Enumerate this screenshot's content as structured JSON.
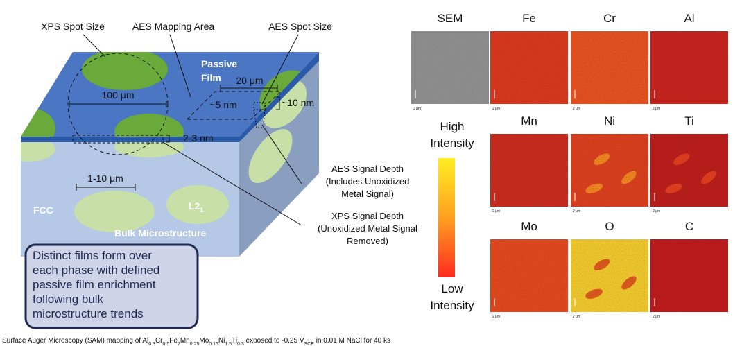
{
  "diagram": {
    "labels": {
      "xps_spot_size": "XPS Spot Size",
      "aes_mapping_area": "AES Mapping Area",
      "aes_spot_size": "AES Spot Size",
      "passive_film": [
        "Passive",
        "Film"
      ],
      "dim_20um": "20 μm",
      "dim_100um": "100 μm",
      "dim_5nm": "~5 nm",
      "dim_10nm": "~10 nm",
      "dim_2_3nm": "2-3 nm",
      "dim_1_10um": "1-10 μm",
      "fcc": "FCC",
      "l2": "L2",
      "l2_sub": "1",
      "bulk": "Bulk Microstructure"
    },
    "aes_signal_depth": [
      "AES Signal Depth",
      "(Includes Unoxidized",
      "Metal Signal)"
    ],
    "xps_signal_depth": [
      "XPS Signal Depth",
      "(Unoxidized Metal Signal",
      "Removed)"
    ],
    "summary": [
      "Distinct films form over",
      "each phase with defined",
      "passive film enrichment",
      "following bulk",
      "microstructure trends"
    ]
  },
  "maps": {
    "panels": [
      {
        "label": "SEM",
        "color": "#8a8a8a"
      },
      {
        "label": "Fe",
        "color": "#d63a1c"
      },
      {
        "label": "Cr",
        "color": "#e4561e"
      },
      {
        "label": "Al",
        "color": "#c0221a"
      },
      {
        "label": "Mn",
        "color": "#c42c1c"
      },
      {
        "label": "Ni",
        "color": "#d8421c"
      },
      {
        "label": "Ti",
        "color": "#b41c18"
      },
      {
        "label": "Mo",
        "color": "#e04c1c"
      },
      {
        "label": "O",
        "color": "#ecce2c"
      },
      {
        "label": "C",
        "color": "#b8181a"
      }
    ],
    "scale_label": "2 μm",
    "colorbar": {
      "high": [
        "High",
        "Intensity"
      ],
      "low": [
        "Low",
        "Intensity"
      ]
    }
  },
  "caption": {
    "prefix": "Surface Auger Microscopy (SAM) mapping of ",
    "formula": [
      [
        "Al",
        "0.3"
      ],
      [
        "Cr",
        "0.5"
      ],
      [
        "Fe",
        "2"
      ],
      [
        "Mn",
        "0.25"
      ],
      [
        "Mo",
        "0.15"
      ],
      [
        "Ni",
        "1.5"
      ],
      [
        "Ti",
        "0.3"
      ]
    ],
    "middle": " exposed to -0.25 V",
    "v_sub": "SCE",
    "suffix": " in 0.01 M NaCl for 40 ks"
  }
}
